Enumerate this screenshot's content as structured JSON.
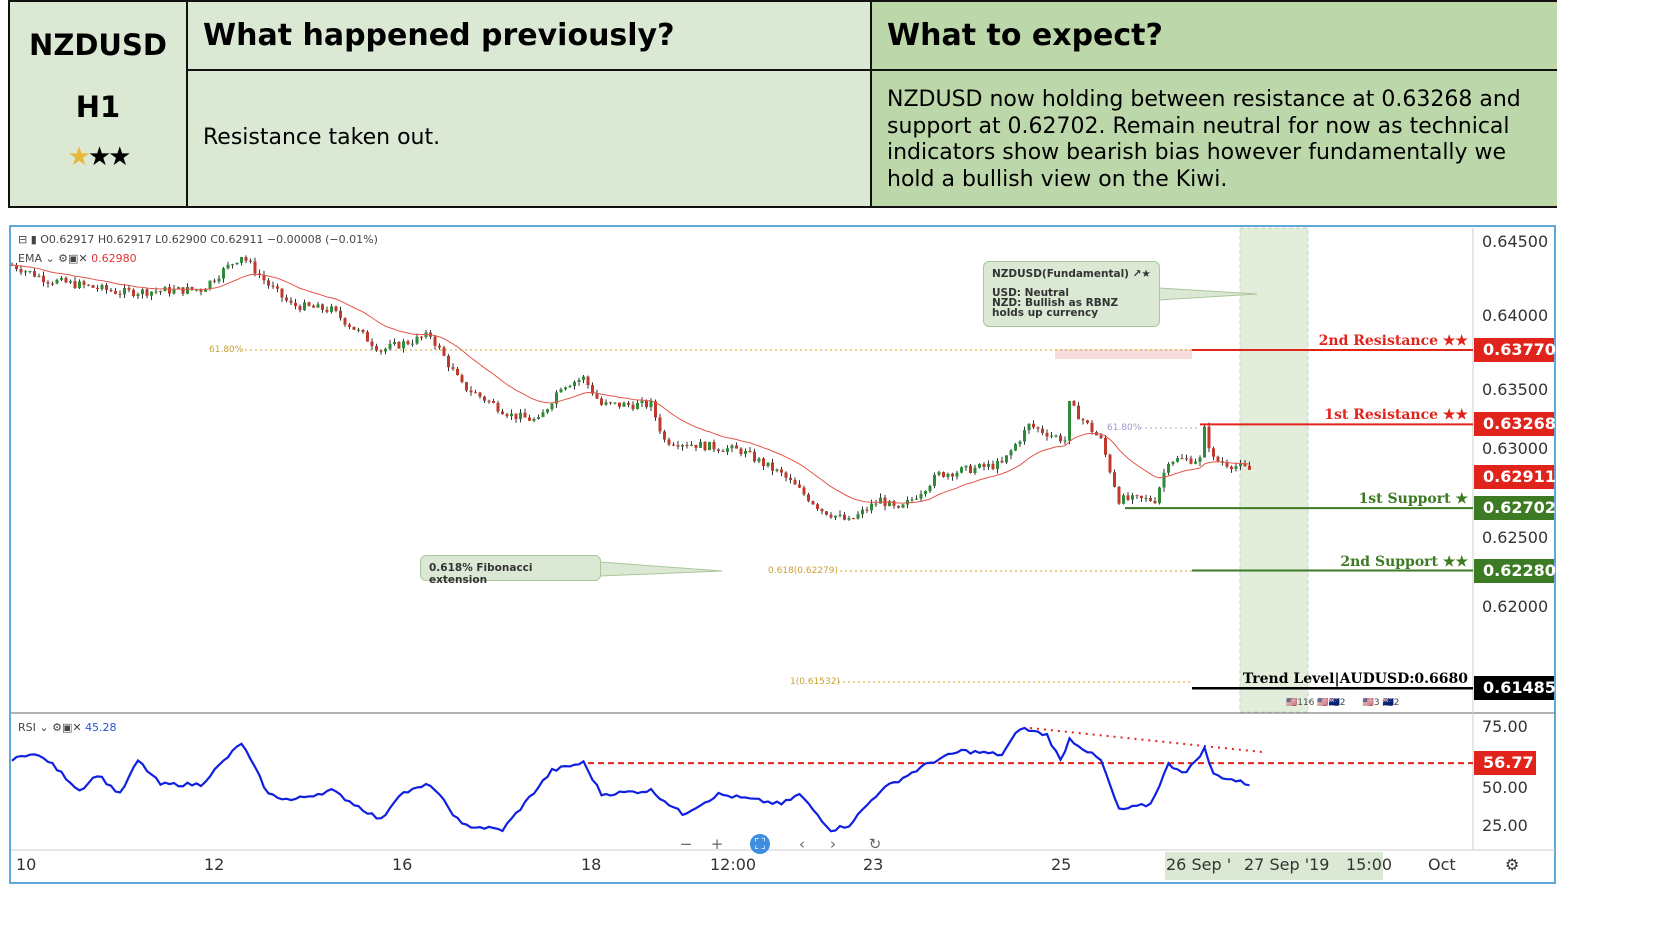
{
  "header": {
    "symbol": "NZDUSD",
    "timeframe": "H1",
    "rating_stars": "★★★",
    "rating_filled": 1,
    "prev_title": "What happened previously?",
    "prev_text": "Resistance taken out.",
    "expect_title": "What to expect?",
    "expect_text": "NZDUSD now holding between resistance at 0.63268 and support at 0.62702. Remain neutral for now as technical indicators show bearish bias however fundamentally we hold a bullish view on the Kiwi."
  },
  "legend": {
    "ohlc": "O0.62917  H0.62917  L0.62900  C0.62911  −0.00008 (−0.01%)",
    "ema_label": "EMA ⌄",
    "ema_value": "0.62980",
    "rsi_label": "RSI ⌄",
    "rsi_value": "45.28"
  },
  "callouts": {
    "fund_title": "NZDUSD(Fundamental) ↗★",
    "fund_usd": "USD: Neutral",
    "fund_nzd": "NZD: Bullish as RBNZ holds up currency",
    "fib": "0.618% Fibonacci extension"
  },
  "fib_labels": {
    "f618": "61.80%",
    "f618b": "61.80%",
    "ext618": "0.618(0.62279)",
    "ext1": "1(0.61532)"
  },
  "levels": [
    {
      "label": "2nd Resistance ★★",
      "price": "0.63770",
      "value": 0.6377,
      "color": "#e0241b"
    },
    {
      "label": "1st Resistance ★★",
      "price": "0.63268",
      "value": 0.63268,
      "color": "#e0241b"
    },
    {
      "label": "1st Support ★",
      "price": "0.62702",
      "value": 0.62702,
      "color": "#3c7a23"
    },
    {
      "label": "2nd Support ★★",
      "price": "0.62280",
      "value": 0.6228,
      "color": "#3c7a23"
    },
    {
      "label": "Trend Level|AUDUSD:0.6680",
      "price": "0.61485",
      "value": 0.61485,
      "color": "#000000"
    }
  ],
  "current_price": {
    "price": "0.62911",
    "color": "#e0241b"
  },
  "price_axis": [
    "0.64500",
    "0.64000",
    "0.63500",
    "0.63000",
    "0.62500",
    "0.62000"
  ],
  "rsi_axis": [
    "75.00",
    "50.00",
    "25.00"
  ],
  "rsi_level": "56.77",
  "time_axis": [
    "10",
    "12",
    "16",
    "18",
    "12:00",
    "23",
    "25",
    "26 Sep '",
    "27 Sep '19",
    "15:00",
    "Oct"
  ],
  "event_counts": [
    "116",
    "2",
    "3",
    "2"
  ],
  "chart_data": {
    "type": "candlestick",
    "price_path": [
      [
        0,
        0.64345
      ],
      [
        8,
        0.64243
      ],
      [
        15,
        0.6421
      ],
      [
        24,
        0.6416
      ],
      [
        42,
        0.6418
      ],
      [
        51,
        0.6441
      ],
      [
        57,
        0.6421
      ],
      [
        62,
        0.64074
      ],
      [
        71,
        0.6404
      ],
      [
        82,
        0.6377
      ],
      [
        93,
        0.6387
      ],
      [
        100,
        0.6353
      ],
      [
        111,
        0.6333
      ],
      [
        117,
        0.6329
      ],
      [
        122,
        0.6353
      ],
      [
        127,
        0.6358
      ],
      [
        131,
        0.634
      ],
      [
        142,
        0.634
      ],
      [
        145,
        0.6316
      ],
      [
        162,
        0.6309
      ],
      [
        171,
        0.6293
      ],
      [
        180,
        0.6269
      ],
      [
        186,
        0.6261
      ],
      [
        193,
        0.6276
      ],
      [
        197,
        0.6268
      ],
      [
        206,
        0.6293
      ],
      [
        220,
        0.63
      ],
      [
        226,
        0.6326
      ],
      [
        234,
        0.6316
      ],
      [
        235,
        0.634
      ],
      [
        242,
        0.6316
      ],
      [
        246,
        0.6276
      ],
      [
        254,
        0.6276
      ],
      [
        257,
        0.6303
      ],
      [
        264,
        0.6303
      ],
      [
        265,
        0.6323
      ],
      [
        267,
        0.6303
      ],
      [
        275,
        0.6296
      ]
    ],
    "rsi_path": [
      [
        0,
        58
      ],
      [
        4,
        62
      ],
      [
        8,
        58
      ],
      [
        15,
        43
      ],
      [
        19,
        51
      ],
      [
        24,
        41
      ],
      [
        28,
        58
      ],
      [
        33,
        46
      ],
      [
        42,
        46
      ],
      [
        51,
        67
      ],
      [
        57,
        41
      ],
      [
        62,
        38
      ],
      [
        71,
        43
      ],
      [
        82,
        28
      ],
      [
        86,
        41
      ],
      [
        93,
        46
      ],
      [
        100,
        25.5
      ],
      [
        109,
        23
      ],
      [
        120,
        53
      ],
      [
        127,
        57
      ],
      [
        131,
        41
      ],
      [
        142,
        43
      ],
      [
        149,
        31
      ],
      [
        157,
        41
      ],
      [
        171,
        36
      ],
      [
        175,
        41
      ],
      [
        182,
        23
      ],
      [
        186,
        25.5
      ],
      [
        193,
        43
      ],
      [
        204,
        57
      ],
      [
        211,
        63
      ],
      [
        220,
        61
      ],
      [
        224,
        74.5
      ],
      [
        230,
        71
      ],
      [
        233,
        58
      ],
      [
        235,
        69
      ],
      [
        242,
        58
      ],
      [
        246,
        33
      ],
      [
        253,
        36
      ],
      [
        257,
        56
      ],
      [
        261,
        52
      ],
      [
        265,
        64
      ],
      [
        267,
        51
      ],
      [
        275,
        46
      ]
    ],
    "price_range": [
      0.6115,
      0.6459
    ],
    "rsi_range": [
      15,
      80
    ],
    "ema_period": 20
  }
}
